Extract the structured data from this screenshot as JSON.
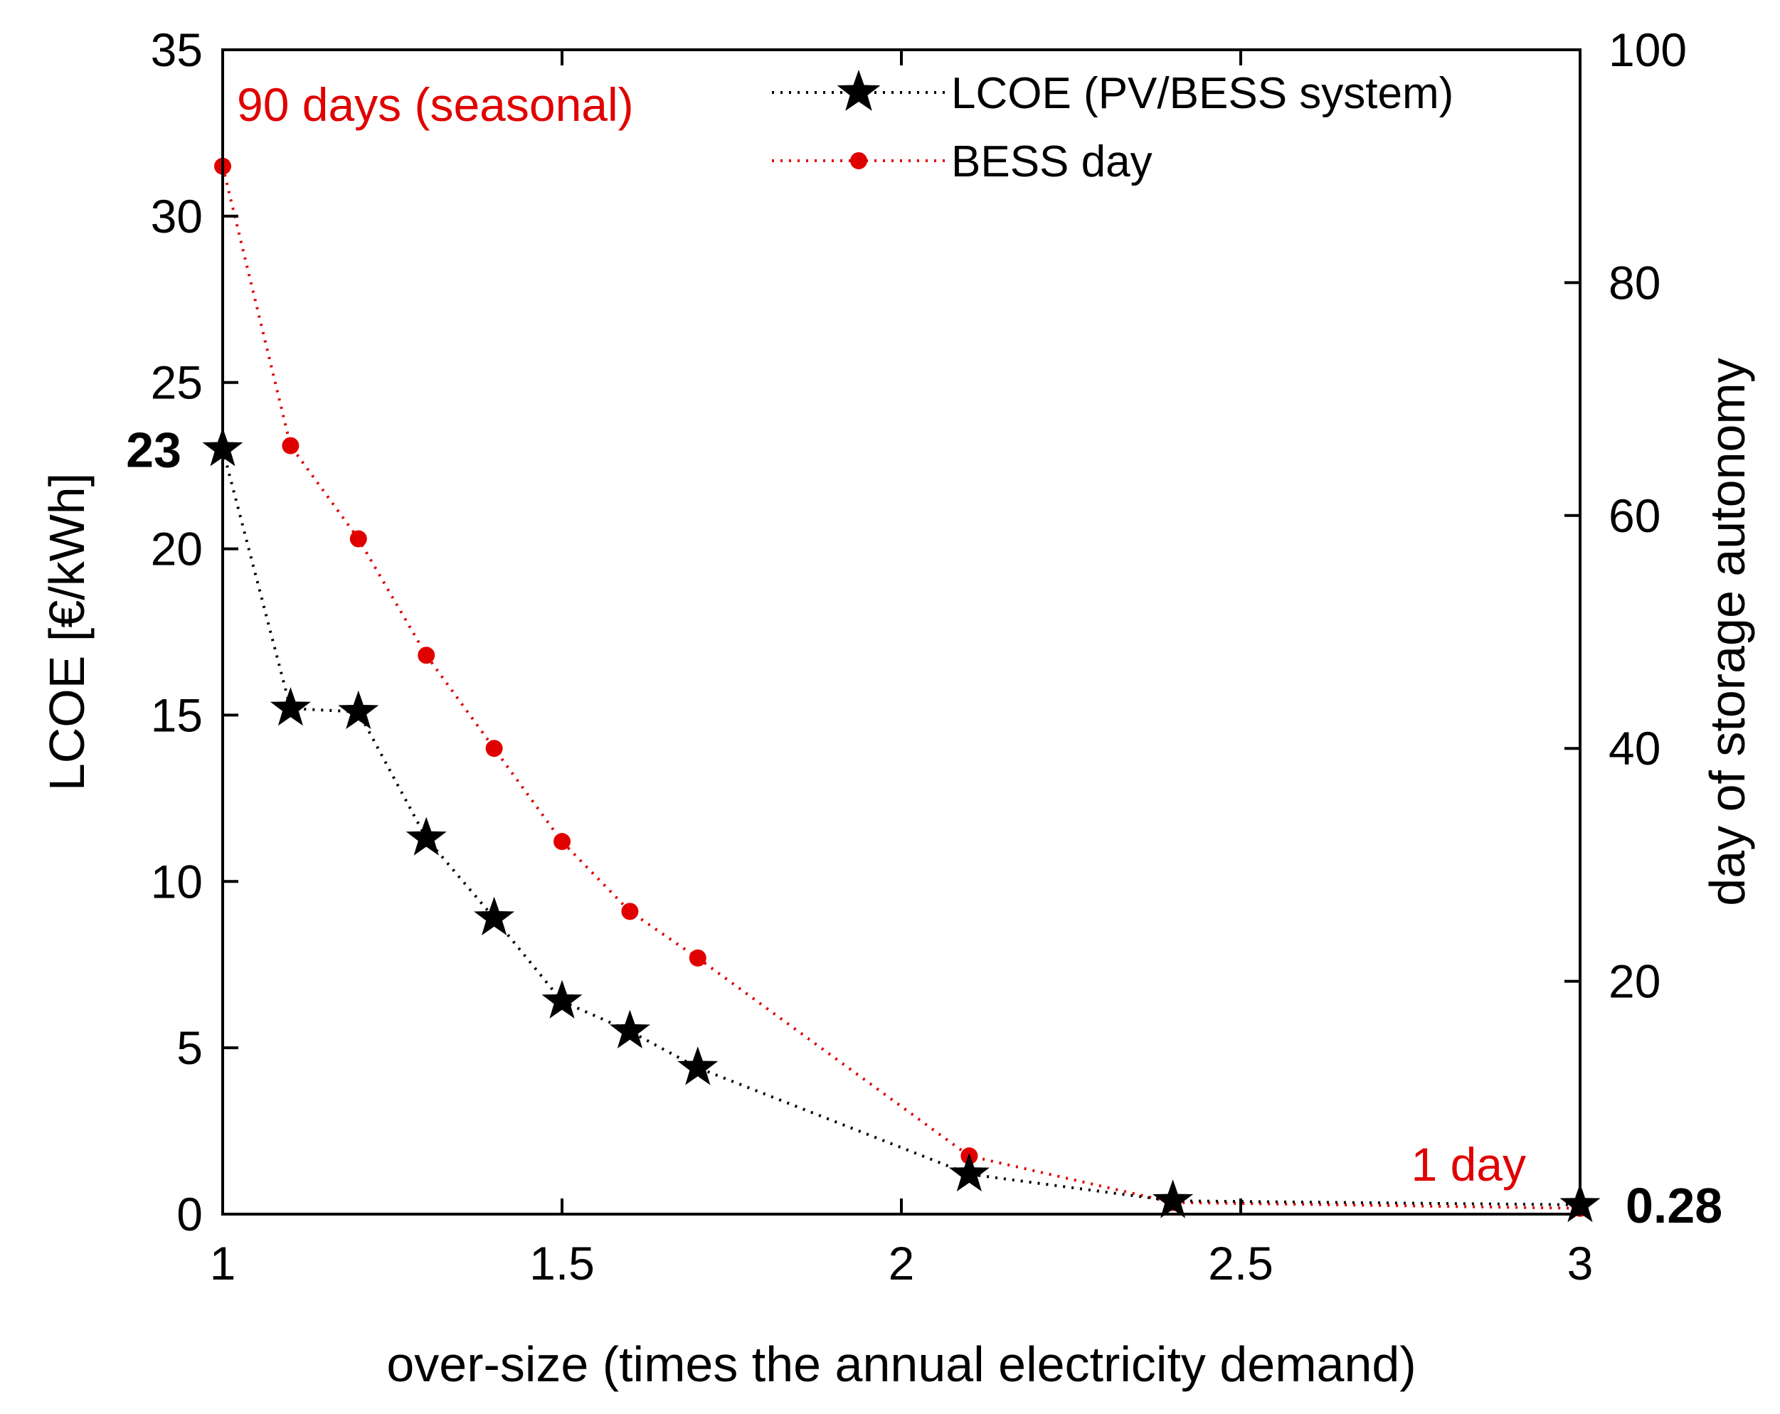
{
  "colors": {
    "lcoe": "#000000",
    "bess": "#e00000",
    "frame": "#000000"
  },
  "chart_data": {
    "type": "line",
    "title": "",
    "xlabel": "over-size (times the annual electricity demand)",
    "ylabel_left": "LCOE [€/kWh]",
    "ylabel_right": "day of storage autonomy",
    "xlim": [
      1,
      3
    ],
    "ylim_left": [
      0,
      35
    ],
    "ylim_right": [
      0,
      100
    ],
    "x_ticks": [
      "1",
      "1.5",
      "2",
      "2.5",
      "3"
    ],
    "y_left_ticks": [
      "0",
      "5",
      "10",
      "15",
      "20",
      "25",
      "30",
      "35"
    ],
    "y_right_ticks": [
      "20",
      "40",
      "60",
      "80",
      "100"
    ],
    "grid": false,
    "legend_position": "top-right",
    "series": [
      {
        "name": "LCOE (PV/BESS system)",
        "axis": "left",
        "marker": "star",
        "x": [
          1.0,
          1.1,
          1.2,
          1.3,
          1.4,
          1.5,
          1.6,
          1.7,
          2.1,
          2.4,
          3.0
        ],
        "values": [
          23,
          15.2,
          15.1,
          11.3,
          8.9,
          6.4,
          5.5,
          4.4,
          1.2,
          0.4,
          0.28
        ]
      },
      {
        "name": "BESS day",
        "axis": "right",
        "marker": "dot",
        "x": [
          1.0,
          1.1,
          1.2,
          1.3,
          1.4,
          1.5,
          1.6,
          1.7,
          2.1,
          2.4,
          3.0
        ],
        "values": [
          90,
          66,
          58,
          48,
          40,
          32,
          26,
          22,
          5,
          1,
          0.5
        ]
      }
    ],
    "annotations": {
      "seasonal": "90 days (seasonal)",
      "one_day": "1 day",
      "start_value": "23",
      "end_value": "0.28"
    }
  }
}
